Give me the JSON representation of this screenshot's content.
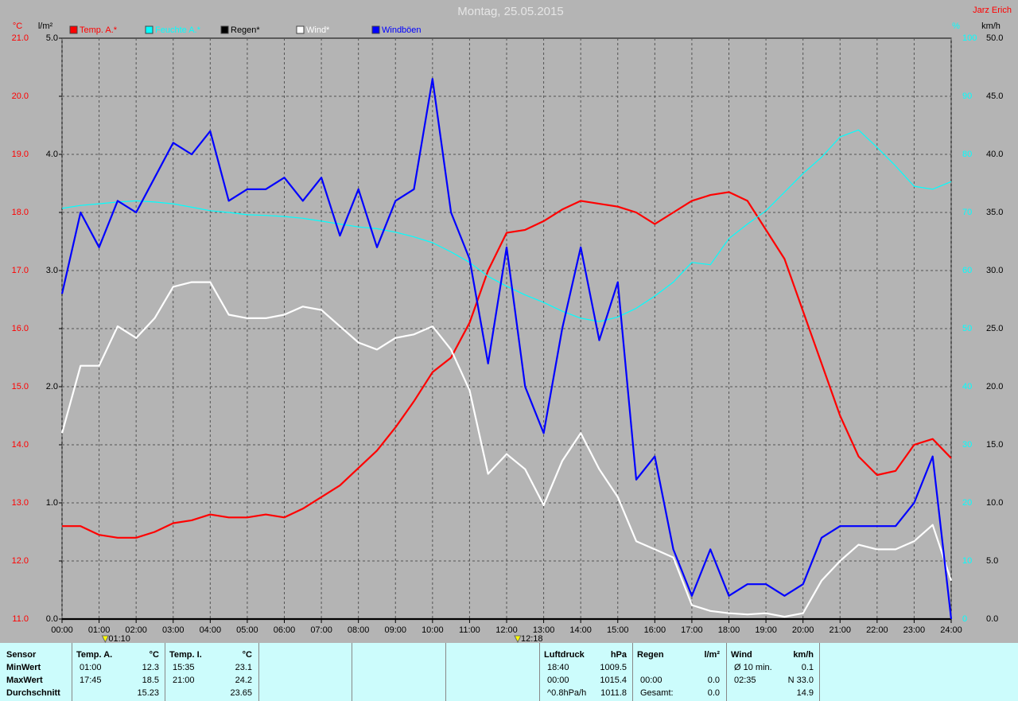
{
  "chart_data": {
    "type": "line",
    "title": "Montag, 25.05.2015",
    "author": "Jarz Erich",
    "y_label": "°C",
    "y2_label": "l/m²",
    "y3_label": "%",
    "y4_label": "km/h",
    "x": [
      "00:00",
      "00:30",
      "01:00",
      "01:30",
      "02:00",
      "02:30",
      "03:00",
      "03:30",
      "04:00",
      "04:30",
      "05:00",
      "05:30",
      "06:00",
      "06:30",
      "07:00",
      "07:30",
      "08:00",
      "08:30",
      "09:00",
      "09:30",
      "10:00",
      "10:30",
      "11:00",
      "11:30",
      "12:00",
      "12:30",
      "13:00",
      "13:30",
      "14:00",
      "14:30",
      "15:00",
      "15:30",
      "16:00",
      "16:30",
      "17:00",
      "17:30",
      "18:00",
      "18:30",
      "19:00",
      "19:30",
      "20:00",
      "20:30",
      "21:00",
      "21:30",
      "22:00",
      "22:30",
      "23:00",
      "23:30",
      "24:00"
    ],
    "xticks": [
      "00:00",
      "01:00",
      "02:00",
      "03:00",
      "04:00",
      "05:00",
      "06:00",
      "07:00",
      "08:00",
      "09:00",
      "10:00",
      "11:00",
      "12:00",
      "13:00",
      "14:00",
      "15:00",
      "16:00",
      "17:00",
      "18:00",
      "19:00",
      "20:00",
      "21:00",
      "22:00",
      "23:00",
      "24:00"
    ],
    "ylim": [
      11,
      21
    ],
    "yticks": [
      {
        "value": 11,
        "label": "11.0"
      },
      {
        "value": 12,
        "label": "12.0"
      },
      {
        "value": 13,
        "label": "13.0"
      },
      {
        "value": 14,
        "label": "14.0"
      },
      {
        "value": 15,
        "label": "15.0"
      },
      {
        "value": 16,
        "label": "16.0"
      },
      {
        "value": 17,
        "label": "17.0"
      },
      {
        "value": 18,
        "label": "18.0"
      },
      {
        "value": 19,
        "label": "19.0"
      },
      {
        "value": 20,
        "label": "20.0"
      },
      {
        "value": 21,
        "label": "21.0"
      }
    ],
    "y2lim": [
      0,
      5
    ],
    "y2ticks": [
      {
        "value": 0,
        "label": "0.0"
      },
      {
        "value": 1,
        "label": "1.0"
      },
      {
        "value": 2,
        "label": "2.0"
      },
      {
        "value": 3,
        "label": "3.0"
      },
      {
        "value": 4,
        "label": "4.0"
      },
      {
        "value": 5,
        "label": "5.0"
      }
    ],
    "y3lim": [
      0,
      100
    ],
    "y3ticks": [
      0,
      10,
      20,
      30,
      40,
      50,
      60,
      70,
      80,
      90,
      100
    ],
    "y4lim": [
      0,
      50
    ],
    "y4ticks": [
      {
        "value": 0,
        "label": "0.0"
      },
      {
        "value": 5,
        "label": "5.0"
      },
      {
        "value": 10,
        "label": "10.0"
      },
      {
        "value": 15,
        "label": "15.0"
      },
      {
        "value": 20,
        "label": "20.0"
      },
      {
        "value": 25,
        "label": "25.0"
      },
      {
        "value": 30,
        "label": "30.0"
      },
      {
        "value": 35,
        "label": "35.0"
      },
      {
        "value": 40,
        "label": "40.0"
      },
      {
        "value": 45,
        "label": "45.0"
      },
      {
        "value": 50,
        "label": "50.0"
      }
    ],
    "grid": true,
    "markers": [
      "01:10",
      "12:18"
    ],
    "series": [
      {
        "name": "Temp. A.*",
        "color": "#ff0000",
        "axis": "y",
        "values": [
          12.6,
          12.6,
          12.45,
          12.4,
          12.4,
          12.5,
          12.65,
          12.7,
          12.8,
          12.75,
          12.75,
          12.8,
          12.75,
          12.9,
          13.1,
          13.3,
          13.6,
          13.9,
          14.3,
          14.75,
          15.25,
          15.5,
          16.1,
          17.0,
          17.65,
          17.7,
          17.85,
          18.05,
          18.2,
          18.15,
          18.1,
          18.0,
          17.8,
          18.0,
          18.2,
          18.3,
          18.35,
          18.2,
          17.7,
          17.2,
          16.3,
          15.4,
          14.5,
          13.8,
          13.48,
          13.55,
          14.0,
          14.1,
          13.77
        ]
      },
      {
        "name": "Feuchte A.*",
        "color": "#00ffff",
        "axis": "y3",
        "values": [
          70.7,
          71.2,
          71.5,
          71.8,
          72,
          71.8,
          71.5,
          70.9,
          70.3,
          70,
          69.6,
          69.5,
          69.3,
          69,
          68.5,
          68,
          67.5,
          67.2,
          66.6,
          65.8,
          64.8,
          63.2,
          61.4,
          59,
          57.3,
          55.8,
          54.5,
          53,
          51.8,
          51.2,
          52,
          53.5,
          55.6,
          58,
          61.4,
          61,
          65.5,
          68,
          70.3,
          73.5,
          76.7,
          79.5,
          83,
          84.2,
          81.2,
          78,
          74.5,
          74,
          75.3
        ]
      },
      {
        "name": "Regen*",
        "color": "#000000",
        "axis": "y2",
        "values": [
          0,
          0,
          0,
          0,
          0,
          0,
          0,
          0,
          0,
          0,
          0,
          0,
          0,
          0,
          0,
          0,
          0,
          0,
          0,
          0,
          0,
          0,
          0,
          0,
          0,
          0,
          0,
          0,
          0,
          0,
          0,
          0,
          0,
          0,
          0,
          0,
          0,
          0,
          0,
          0,
          0,
          0,
          0,
          0,
          0,
          0,
          0,
          0,
          0
        ]
      },
      {
        "name": "Wind*",
        "color": "#ffffff",
        "axis": "y4",
        "values": [
          16,
          21.8,
          21.8,
          25.2,
          24.2,
          25.9,
          28.6,
          29,
          29,
          26.2,
          25.9,
          25.9,
          26.2,
          26.9,
          26.6,
          25.2,
          23.8,
          23.2,
          24.2,
          24.5,
          25.2,
          23.2,
          19.7,
          12.5,
          14.2,
          12.9,
          9.8,
          13.6,
          16,
          12.9,
          10.5,
          6.7,
          6,
          5.3,
          1.2,
          0.7,
          0.5,
          0.4,
          0.5,
          0.2,
          0.5,
          3.3,
          5,
          6.4,
          6,
          6,
          6.7,
          8.1,
          3.3
        ]
      },
      {
        "name": "Windböen",
        "color": "#0000ff",
        "axis": "y4",
        "values": [
          28,
          35,
          32,
          36,
          35,
          38,
          41,
          40,
          42,
          36,
          37,
          37,
          38,
          36,
          38,
          33,
          37,
          32,
          36,
          37,
          46.5,
          35,
          31,
          22,
          32,
          20,
          16,
          25,
          32,
          24,
          29,
          12,
          14,
          6,
          2,
          6,
          2,
          3,
          3,
          2,
          3,
          7,
          8,
          8,
          8,
          8,
          10,
          14,
          0
        ]
      }
    ]
  },
  "table": {
    "sensor_column": [
      "Sensor",
      "MinWert",
      "MaxWert",
      "Durchschnitt"
    ],
    "blocks": [
      {
        "title": "Temp. A.",
        "unit": "°C",
        "rows": [
          [
            "01:00",
            "12.3"
          ],
          [
            "17:45",
            "18.5"
          ],
          [
            null,
            "15.23"
          ]
        ]
      },
      {
        "title": "Temp. I.",
        "unit": "°C",
        "rows": [
          [
            "15:35",
            "23.1"
          ],
          [
            "21:00",
            "24.2"
          ],
          [
            null,
            "23.65"
          ]
        ]
      },
      {
        "title": "Luftdruck",
        "unit": "hPa",
        "rows": [
          [
            "18:40",
            "1009.5"
          ],
          [
            "00:00",
            "1015.4"
          ],
          [
            "^0.8hPa/h",
            "1011.8"
          ]
        ]
      },
      {
        "title": "Regen",
        "unit": "l/m²",
        "rows": [
          [
            null,
            null
          ],
          [
            "00:00",
            "0.0"
          ],
          [
            "Gesamt:",
            "0.0"
          ]
        ]
      },
      {
        "title": "Wind",
        "unit": "km/h",
        "rows": [
          [
            "Ø 10 min.",
            "0.1"
          ],
          [
            "02:35",
            "N 33.0"
          ],
          [
            null,
            "14.9"
          ]
        ]
      }
    ]
  }
}
